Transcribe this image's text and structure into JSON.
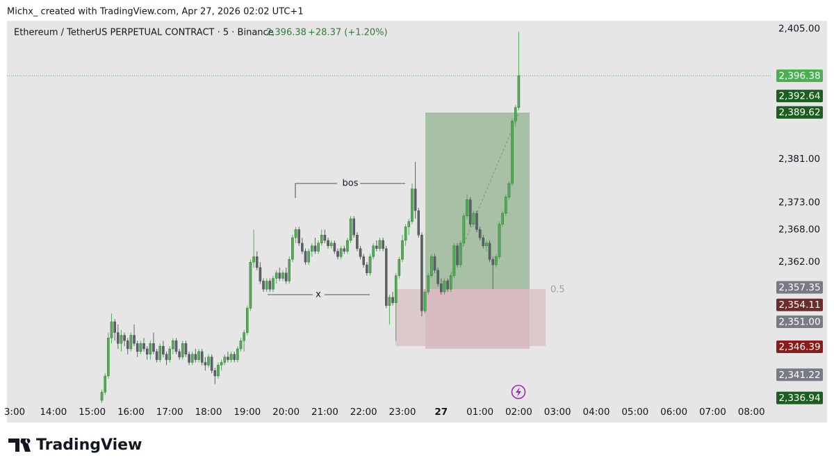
{
  "header": {
    "caption": "Michx_ created with TradingView.com, Apr 27, 2026 02:02 UTC+1"
  },
  "chart_data": {
    "type": "candlestick",
    "title": "Ethereum / TetherUS PERPETUAL CONTRACT · 5 · Binance",
    "change_label": "+28.37 (+1.20%)",
    "up_color": "#4caf50",
    "down_color": "#5d606b",
    "ylim": [
      2336,
      2406.5
    ],
    "yticks": [
      {
        "value": 2405,
        "label": "2,405.00"
      },
      {
        "value": 2381,
        "label": "2,381.00"
      },
      {
        "value": 2373,
        "label": "2,373.00"
      },
      {
        "value": 2368,
        "label": "2,368.00"
      },
      {
        "value": 2362,
        "label": "2,362.00"
      }
    ],
    "xticks": [
      "3:00",
      "14:00",
      "15:00",
      "16:00",
      "17:00",
      "18:00",
      "19:00",
      "20:00",
      "21:00",
      "22:00",
      "23:00",
      "27",
      "01:00",
      "02:00",
      "03:00",
      "04:00",
      "05:00",
      "06:00",
      "07:00",
      "08:00"
    ],
    "price_tags": [
      {
        "value": 2396.38,
        "label": "2,396.38",
        "color": "#4caf50"
      },
      {
        "value": 2392.64,
        "label": "2,392.64",
        "color": "#1b5e20"
      },
      {
        "value": 2389.62,
        "label": "2,389.62",
        "color": "#1b5e20"
      },
      {
        "value": 2357.35,
        "label": "2,357.35",
        "color": "#787b86"
      },
      {
        "value": 2354.11,
        "label": "2,354.11",
        "color": "#6d2c2c"
      },
      {
        "value": 2351.0,
        "label": "2,351.00",
        "color": "#787b86"
      },
      {
        "value": 2346.39,
        "label": "2,346.39",
        "color": "#8b1a1a"
      },
      {
        "value": 2341.22,
        "label": "2,341.22",
        "color": "#787b86"
      },
      {
        "value": 2336.94,
        "label": "2,336.94",
        "color": "#1b5e20"
      }
    ],
    "annotations": {
      "bos": "bos",
      "x": "x",
      "fib": "0.5"
    },
    "candles": [
      [
        2336.5,
        2338.5,
        2336.0,
        2338.0
      ],
      [
        2338.0,
        2341.5,
        2337.5,
        2341.0
      ],
      [
        2341.0,
        2349.0,
        2340.5,
        2348.0
      ],
      [
        2348.0,
        2352.5,
        2347.0,
        2351.0
      ],
      [
        2351.0,
        2351.5,
        2347.5,
        2349.0
      ],
      [
        2349.0,
        2350.5,
        2346.0,
        2347.0
      ],
      [
        2347.0,
        2349.5,
        2345.5,
        2348.5
      ],
      [
        2348.5,
        2349.0,
        2346.5,
        2347.5
      ],
      [
        2347.5,
        2348.0,
        2345.0,
        2346.0
      ],
      [
        2346.0,
        2349.0,
        2345.5,
        2348.5
      ],
      [
        2348.5,
        2350.5,
        2346.5,
        2347.0
      ],
      [
        2347.0,
        2347.5,
        2344.5,
        2345.5
      ],
      [
        2345.5,
        2347.5,
        2345.0,
        2347.0
      ],
      [
        2347.0,
        2348.0,
        2345.5,
        2346.0
      ],
      [
        2346.0,
        2346.5,
        2344.0,
        2345.0
      ],
      [
        2345.0,
        2347.5,
        2344.0,
        2347.0
      ],
      [
        2347.0,
        2349.0,
        2345.0,
        2345.5
      ],
      [
        2345.5,
        2346.0,
        2343.5,
        2344.0
      ],
      [
        2344.0,
        2347.0,
        2343.5,
        2346.5
      ],
      [
        2346.5,
        2347.5,
        2344.5,
        2345.0
      ],
      [
        2345.0,
        2345.5,
        2343.0,
        2344.0
      ],
      [
        2344.0,
        2346.5,
        2343.5,
        2346.0
      ],
      [
        2346.0,
        2348.0,
        2345.0,
        2347.5
      ],
      [
        2347.5,
        2348.0,
        2345.0,
        2345.5
      ],
      [
        2345.5,
        2346.0,
        2344.0,
        2344.5
      ],
      [
        2344.5,
        2347.5,
        2344.0,
        2347.0
      ],
      [
        2347.0,
        2347.5,
        2344.5,
        2345.0
      ],
      [
        2345.0,
        2345.5,
        2343.0,
        2343.5
      ],
      [
        2343.5,
        2345.5,
        2343.0,
        2345.0
      ],
      [
        2345.0,
        2346.0,
        2343.5,
        2344.0
      ],
      [
        2344.0,
        2346.0,
        2343.5,
        2345.5
      ],
      [
        2345.5,
        2346.0,
        2343.0,
        2343.5
      ],
      [
        2343.5,
        2344.5,
        2342.0,
        2343.0
      ],
      [
        2343.0,
        2345.0,
        2342.5,
        2344.5
      ],
      [
        2344.5,
        2345.0,
        2341.5,
        2342.0
      ],
      [
        2342.0,
        2342.5,
        2339.5,
        2341.0
      ],
      [
        2341.0,
        2343.5,
        2340.5,
        2343.0
      ],
      [
        2343.0,
        2344.0,
        2342.0,
        2343.5
      ],
      [
        2343.5,
        2345.0,
        2343.0,
        2344.5
      ],
      [
        2344.5,
        2345.5,
        2343.5,
        2344.0
      ],
      [
        2344.0,
        2345.5,
        2343.5,
        2345.0
      ],
      [
        2345.0,
        2345.5,
        2343.5,
        2344.0
      ],
      [
        2344.0,
        2346.5,
        2343.5,
        2346.0
      ],
      [
        2346.0,
        2348.0,
        2345.5,
        2347.5
      ],
      [
        2347.5,
        2349.5,
        2345.5,
        2349.0
      ],
      [
        2349.0,
        2354.0,
        2348.5,
        2353.5
      ],
      [
        2353.5,
        2362.5,
        2353.0,
        2362.0
      ],
      [
        2362.0,
        2368.0,
        2361.0,
        2363.0
      ],
      [
        2363.0,
        2364.0,
        2360.5,
        2361.0
      ],
      [
        2361.0,
        2362.0,
        2358.0,
        2358.5
      ],
      [
        2358.5,
        2359.0,
        2356.5,
        2357.0
      ],
      [
        2357.0,
        2359.0,
        2356.5,
        2358.5
      ],
      [
        2358.5,
        2359.0,
        2356.5,
        2357.0
      ],
      [
        2357.0,
        2359.5,
        2356.5,
        2359.0
      ],
      [
        2359.0,
        2360.5,
        2358.0,
        2360.0
      ],
      [
        2360.0,
        2361.0,
        2358.5,
        2359.0
      ],
      [
        2359.0,
        2360.5,
        2358.5,
        2360.0
      ],
      [
        2360.0,
        2361.0,
        2358.0,
        2358.5
      ],
      [
        2358.5,
        2363.0,
        2358.0,
        2362.5
      ],
      [
        2362.5,
        2367.0,
        2362.0,
        2366.5
      ],
      [
        2366.5,
        2368.5,
        2365.5,
        2368.0
      ],
      [
        2368.0,
        2368.5,
        2365.0,
        2365.5
      ],
      [
        2365.5,
        2366.5,
        2363.5,
        2364.0
      ],
      [
        2364.0,
        2364.5,
        2361.5,
        2362.0
      ],
      [
        2362.0,
        2364.5,
        2361.5,
        2364.0
      ],
      [
        2364.0,
        2365.5,
        2363.0,
        2365.0
      ],
      [
        2365.0,
        2366.5,
        2363.5,
        2364.0
      ],
      [
        2364.0,
        2366.0,
        2363.5,
        2365.5
      ],
      [
        2365.5,
        2368.0,
        2365.0,
        2367.0
      ],
      [
        2367.0,
        2368.0,
        2365.5,
        2366.0
      ],
      [
        2366.0,
        2366.5,
        2364.5,
        2365.0
      ],
      [
        2365.0,
        2366.0,
        2364.5,
        2365.5
      ],
      [
        2365.5,
        2366.0,
        2363.5,
        2364.0
      ],
      [
        2364.0,
        2364.5,
        2362.5,
        2363.0
      ],
      [
        2363.0,
        2365.0,
        2362.5,
        2364.5
      ],
      [
        2364.5,
        2365.0,
        2363.5,
        2364.0
      ],
      [
        2364.0,
        2366.5,
        2363.5,
        2366.0
      ],
      [
        2366.0,
        2370.5,
        2365.5,
        2370.0
      ],
      [
        2370.0,
        2370.5,
        2366.5,
        2367.0
      ],
      [
        2367.0,
        2367.5,
        2364.0,
        2364.5
      ],
      [
        2364.5,
        2365.0,
        2362.5,
        2363.0
      ],
      [
        2363.0,
        2363.5,
        2361.0,
        2361.5
      ],
      [
        2361.5,
        2362.0,
        2359.5,
        2360.0
      ],
      [
        2360.0,
        2363.5,
        2359.5,
        2363.0
      ],
      [
        2363.0,
        2365.5,
        2362.5,
        2365.0
      ],
      [
        2365.0,
        2366.0,
        2364.0,
        2364.5
      ],
      [
        2364.5,
        2366.5,
        2364.0,
        2366.0
      ],
      [
        2366.0,
        2366.5,
        2364.0,
        2364.5
      ],
      [
        2364.5,
        2365.0,
        2353.5,
        2354.0
      ],
      [
        2354.0,
        2356.0,
        2350.5,
        2355.5
      ],
      [
        2355.5,
        2356.5,
        2354.0,
        2354.5
      ],
      [
        2354.5,
        2360.0,
        2347.5,
        2359.5
      ],
      [
        2359.5,
        2363.0,
        2359.0,
        2362.5
      ],
      [
        2362.5,
        2367.0,
        2362.0,
        2366.0
      ],
      [
        2366.0,
        2369.0,
        2365.0,
        2368.5
      ],
      [
        2368.5,
        2370.0,
        2367.0,
        2369.5
      ],
      [
        2369.5,
        2376.5,
        2369.0,
        2375.5
      ],
      [
        2375.5,
        2380.5,
        2370.0,
        2371.5
      ],
      [
        2371.5,
        2372.0,
        2366.5,
        2367.0
      ],
      [
        2367.0,
        2367.5,
        2352.0,
        2353.0
      ],
      [
        2353.0,
        2357.0,
        2352.5,
        2356.5
      ],
      [
        2356.5,
        2360.0,
        2356.0,
        2359.5
      ],
      [
        2359.5,
        2363.5,
        2359.0,
        2363.0
      ],
      [
        2363.0,
        2363.5,
        2360.0,
        2360.5
      ],
      [
        2360.5,
        2361.0,
        2357.5,
        2358.0
      ],
      [
        2358.0,
        2359.0,
        2356.0,
        2356.5
      ],
      [
        2356.5,
        2359.0,
        2356.0,
        2358.5
      ],
      [
        2358.5,
        2359.0,
        2356.5,
        2357.0
      ],
      [
        2357.0,
        2360.0,
        2356.5,
        2359.5
      ],
      [
        2359.5,
        2365.5,
        2359.0,
        2365.0
      ],
      [
        2365.0,
        2365.5,
        2361.0,
        2361.5
      ],
      [
        2361.5,
        2366.0,
        2361.0,
        2365.5
      ],
      [
        2365.5,
        2371.0,
        2365.0,
        2370.5
      ],
      [
        2370.5,
        2374.5,
        2370.0,
        2373.5
      ],
      [
        2373.5,
        2374.0,
        2368.5,
        2369.0
      ],
      [
        2369.0,
        2371.5,
        2368.5,
        2371.0
      ],
      [
        2371.0,
        2371.5,
        2367.5,
        2368.0
      ],
      [
        2368.0,
        2368.5,
        2366.0,
        2366.5
      ],
      [
        2366.5,
        2367.0,
        2364.5,
        2365.0
      ],
      [
        2365.0,
        2366.0,
        2364.0,
        2365.5
      ],
      [
        2365.5,
        2366.0,
        2362.0,
        2362.5
      ],
      [
        2362.5,
        2363.0,
        2357.0,
        2361.5
      ],
      [
        2361.5,
        2363.5,
        2361.0,
        2363.0
      ],
      [
        2363.0,
        2369.5,
        2362.5,
        2369.0
      ],
      [
        2369.0,
        2371.5,
        2368.5,
        2371.0
      ],
      [
        2371.0,
        2374.5,
        2370.5,
        2374.0
      ],
      [
        2374.0,
        2377.0,
        2373.5,
        2376.5
      ],
      [
        2376.5,
        2388.5,
        2376.0,
        2388.0
      ],
      [
        2388.0,
        2391.0,
        2387.0,
        2390.5
      ],
      [
        2390.5,
        2404.5,
        2390.0,
        2396.38
      ]
    ]
  },
  "brand": "TradingView"
}
